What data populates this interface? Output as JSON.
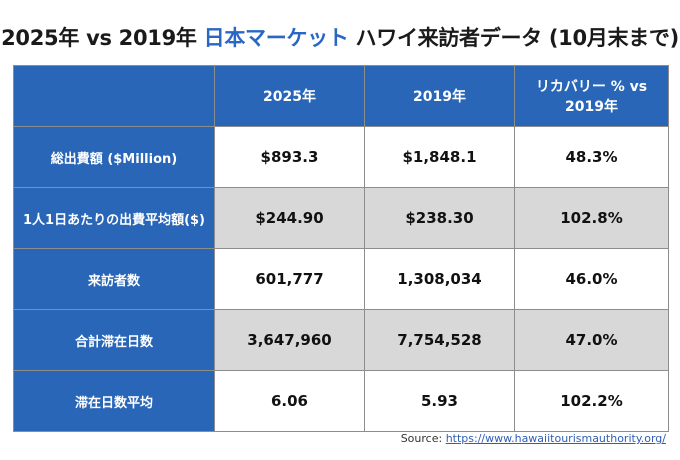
{
  "title": {
    "part1": "2025年 vs 2019年 ",
    "accent": "日本マーケット",
    "part2": "  ハワイ来訪者データ (10月末まで)"
  },
  "table": {
    "headers": [
      "",
      "2025年",
      "2019年",
      "リカバリー % vs 2019年"
    ],
    "rows": [
      {
        "label": "総出費額 ($Million)",
        "values": [
          "$893.3",
          "$1,848.1",
          "48.3%"
        ]
      },
      {
        "label": "1人1日あたりの出費平均額($)",
        "values": [
          "$244.90",
          "$238.30",
          "102.8%"
        ]
      },
      {
        "label": "来訪者数",
        "values": [
          "601,777",
          "1,308,034",
          "46.0%"
        ]
      },
      {
        "label": "合計滞在日数",
        "values": [
          "3,647,960",
          "7,754,528",
          "47.0%"
        ]
      },
      {
        "label": "滞在日数平均",
        "values": [
          "6.06",
          "5.93",
          "102.2%"
        ]
      }
    ]
  },
  "source": {
    "label": "Source: ",
    "link_text": "https://www.hawaiitourismauthority.org/"
  },
  "colors": {
    "header_blue": "#2966b8",
    "accent_blue": "#2a67c4",
    "row_gray": "#d8d8d8",
    "link_blue": "#2e5fb5"
  }
}
